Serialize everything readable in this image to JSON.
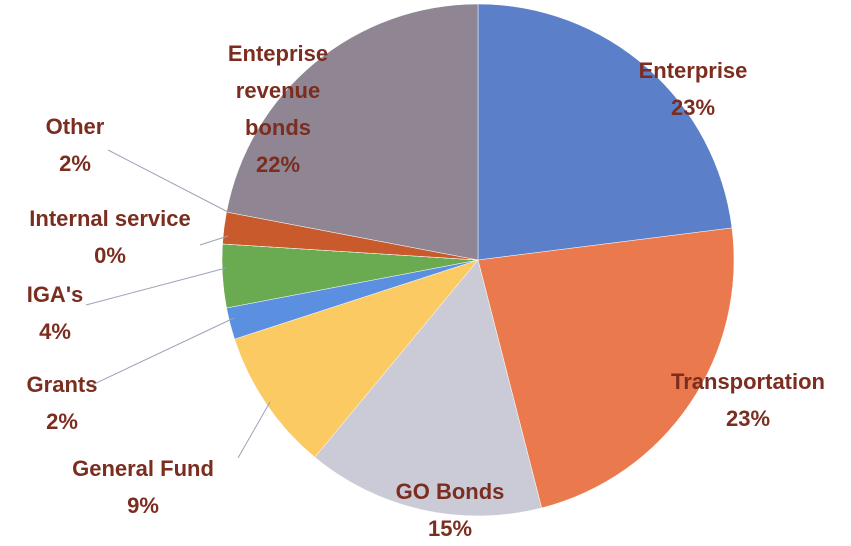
{
  "chart_data": {
    "type": "pie",
    "categories": [
      "Enterprise",
      "Transportation",
      "GO Bonds",
      "General Fund",
      "Grants",
      "IGA's",
      "Internal service",
      "Other",
      "Enteprise revenue bonds"
    ],
    "values": [
      23,
      23,
      15,
      9,
      2,
      4,
      0,
      2,
      22
    ],
    "value_labels": [
      "23%",
      "23%",
      "15%",
      "9%",
      "2%",
      "4%",
      "0%",
      "2%",
      "22%"
    ],
    "colors": [
      "#5b7fc9",
      "#ea7a4e",
      "#cbcbd8",
      "#fcca62",
      "#5b8fe0",
      "#6aab52",
      "#34449a",
      "#c85a2c",
      "#8f8593"
    ]
  }
}
